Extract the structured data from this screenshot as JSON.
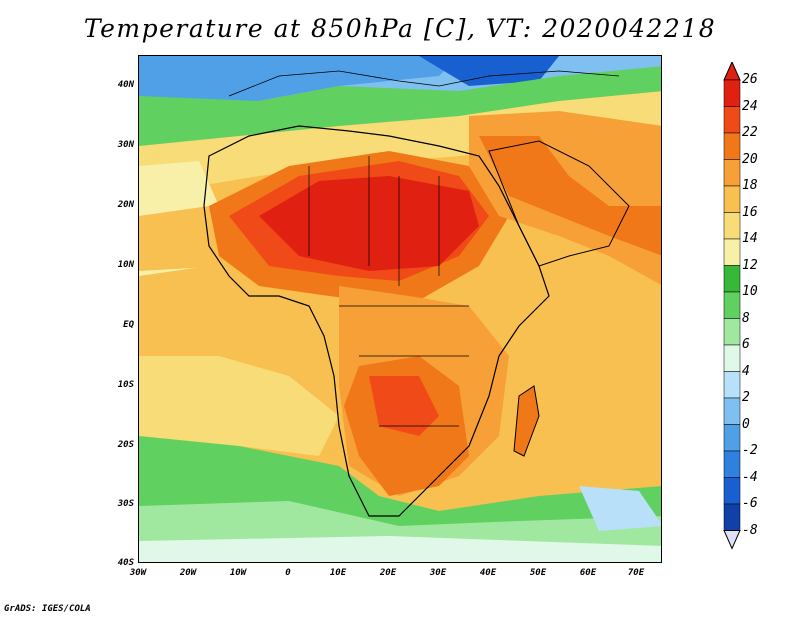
{
  "title": "Temperature at 850hPa [C], VT: 2020042218",
  "footer": "GrADS: IGES/COLA",
  "y_ticks": [
    "40N",
    "30N",
    "20N",
    "10N",
    "EQ",
    "10S",
    "20S",
    "30S",
    "40S"
  ],
  "x_ticks": [
    "30W",
    "20W",
    "10W",
    "0",
    "10E",
    "20E",
    "30E",
    "40E",
    "50E",
    "60E",
    "70E"
  ],
  "colorbar": {
    "labels": [
      "26",
      "24",
      "22",
      "20",
      "18",
      "16",
      "14",
      "12",
      "10",
      "8",
      "6",
      "4",
      "2",
      "0",
      "-2",
      "-4",
      "-6",
      "-8"
    ],
    "colors": [
      "#e02010",
      "#f04a18",
      "#f07818",
      "#f8a038",
      "#f8c050",
      "#f8dc78",
      "#f8f0a8",
      "#38b838",
      "#60d060",
      "#a0e8a0",
      "#e0f8e8",
      "#b8e0f8",
      "#80c0f0",
      "#50a0e8",
      "#3080e0",
      "#1860d0",
      "#1040a8",
      "#081880"
    ]
  },
  "colors": {
    "ocean_warm": "#f8c050",
    "land_hot": "#e02010",
    "coast": "#000000"
  }
}
